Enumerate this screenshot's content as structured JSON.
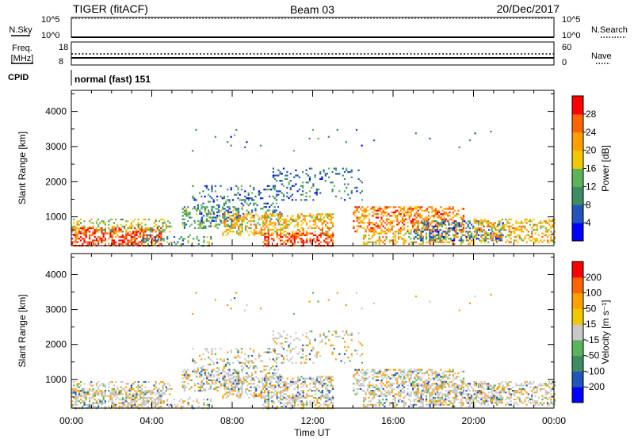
{
  "header": {
    "title": "TIGER (fitACF)",
    "beam": "Beam 03",
    "date": "20/Dec/2017"
  },
  "noise_panel": {
    "left_label": "N.Sky",
    "right_label": "N.Search",
    "ticks": [
      "10^5",
      "10^0"
    ]
  },
  "freq_panel": {
    "left_label_1": "Freq.",
    "left_label_2": "[MHz]",
    "left_ticks": [
      "18",
      "8"
    ],
    "right_label": "Nave",
    "right_ticks": [
      "60",
      "0"
    ]
  },
  "cpid": {
    "label": "CPID",
    "value": "normal (fast) 151"
  },
  "colors": {
    "power_scale": [
      "#0000ff",
      "#2255bb",
      "#3c8c64",
      "#5ab45a",
      "#f0c800",
      "#ffa000",
      "#ff6400",
      "#ff0000"
    ],
    "velocity_scale": [
      "#ff0000",
      "#ff6400",
      "#ffa000",
      "#f0c800",
      "#c8c8c8",
      "#5ab45a",
      "#3c8c64",
      "#2255bb",
      "#0000ff"
    ]
  },
  "chart_data": [
    {
      "type": "heatmap",
      "quantity": "power",
      "ylabel": "Slant Range [km]",
      "yticks": [
        1000,
        2000,
        3000,
        4000
      ],
      "ylim": [
        180,
        4600
      ],
      "colorbar_label": "Power [dB]",
      "colorbar_ticks": [
        "4",
        "8",
        "12",
        "16",
        "20",
        "24",
        "28"
      ],
      "colorbar_range": [
        0,
        32
      ]
    },
    {
      "type": "heatmap",
      "quantity": "velocity",
      "ylabel": "Slant Range [km]",
      "yticks": [
        1000,
        2000,
        3000,
        4000
      ],
      "ylim": [
        180,
        4600
      ],
      "colorbar_label": "Velocity [m s⁻¹]",
      "colorbar_ticks": [
        "200",
        "100",
        "50",
        "15",
        "-15",
        "-50",
        "-100",
        "-200"
      ]
    }
  ],
  "xaxis": {
    "label": "Time UT",
    "ticks": [
      "00:00",
      "04:00",
      "08:00",
      "12:00",
      "16:00",
      "20:00",
      "00:00"
    ],
    "range_hours": [
      0,
      24
    ]
  }
}
